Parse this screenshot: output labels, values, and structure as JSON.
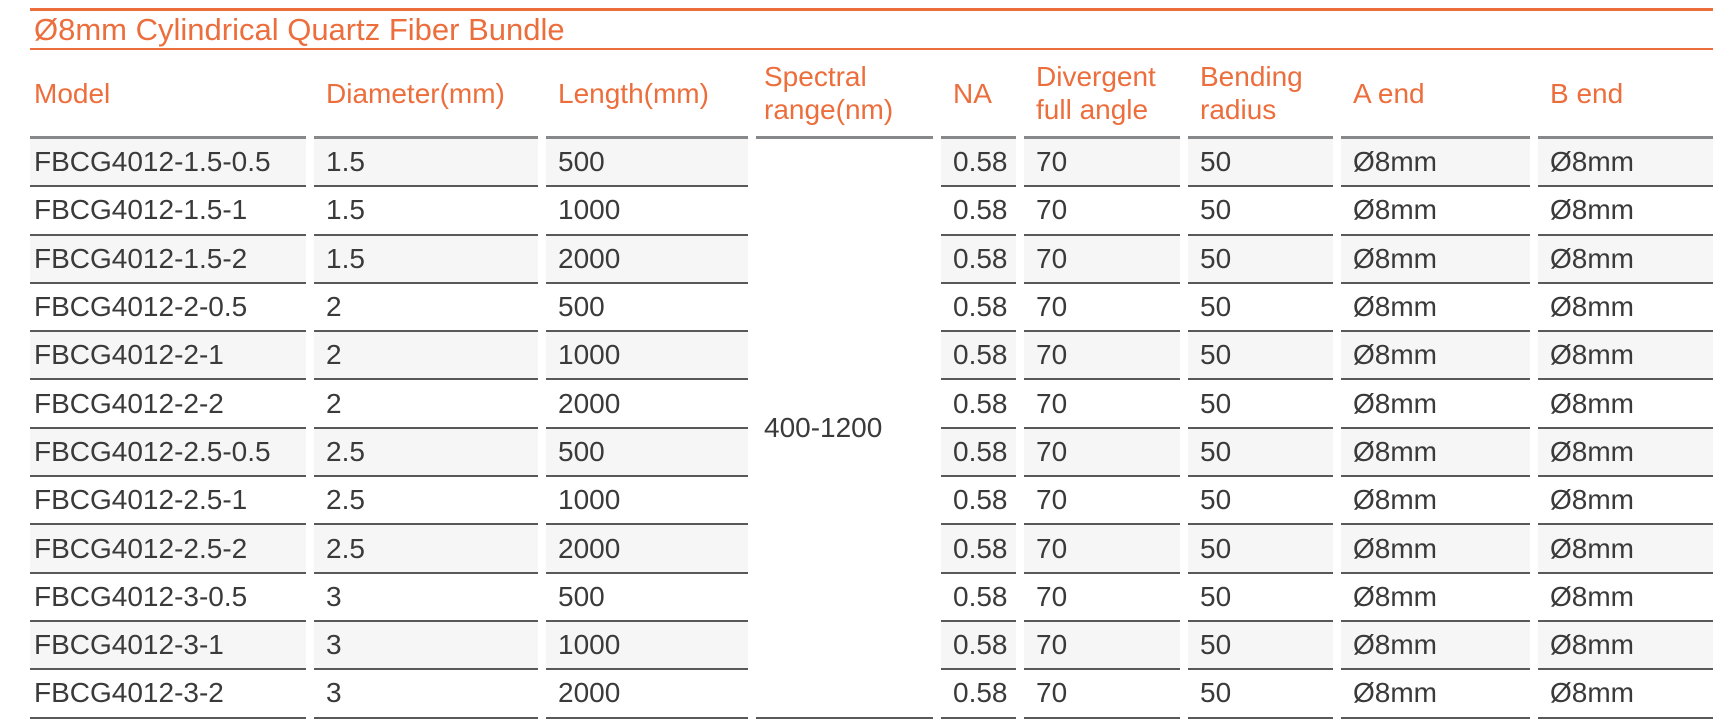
{
  "page": {
    "title": "Ø8mm Cylindrical Quartz Fiber Bundle"
  },
  "colors": {
    "accent_orange": "#ec6e3c",
    "row_stripe": "#f6f6f7",
    "row_divider": "#58595b",
    "header_divider": "#87888a",
    "body_text": "#3a3a3a"
  },
  "table": {
    "headers": [
      "Model",
      "Diameter(mm)",
      "Length(mm)",
      "Spectral range(nm)",
      "NA",
      "Divergent full angle",
      "Bending radius",
      "A end",
      "B end"
    ],
    "merged": {
      "column": "Spectral range(nm)",
      "value": "400-1200"
    },
    "rows": [
      {
        "model": "FBCG4012-1.5-0.5",
        "diameter": "1.5",
        "length": "500",
        "na": "0.58",
        "divergent_full_angle": "70",
        "bending_radius": "50",
        "a_end": "Ø8mm",
        "b_end": "Ø8mm"
      },
      {
        "model": "FBCG4012-1.5-1",
        "diameter": "1.5",
        "length": "1000",
        "na": "0.58",
        "divergent_full_angle": "70",
        "bending_radius": "50",
        "a_end": "Ø8mm",
        "b_end": "Ø8mm"
      },
      {
        "model": "FBCG4012-1.5-2",
        "diameter": "1.5",
        "length": "2000",
        "na": "0.58",
        "divergent_full_angle": "70",
        "bending_radius": "50",
        "a_end": "Ø8mm",
        "b_end": "Ø8mm"
      },
      {
        "model": "FBCG4012-2-0.5",
        "diameter": "2",
        "length": "500",
        "na": "0.58",
        "divergent_full_angle": "70",
        "bending_radius": "50",
        "a_end": "Ø8mm",
        "b_end": "Ø8mm"
      },
      {
        "model": "FBCG4012-2-1",
        "diameter": "2",
        "length": "1000",
        "na": "0.58",
        "divergent_full_angle": "70",
        "bending_radius": "50",
        "a_end": "Ø8mm",
        "b_end": "Ø8mm"
      },
      {
        "model": "FBCG4012-2-2",
        "diameter": "2",
        "length": "2000",
        "na": "0.58",
        "divergent_full_angle": "70",
        "bending_radius": "50",
        "a_end": "Ø8mm",
        "b_end": "Ø8mm"
      },
      {
        "model": "FBCG4012-2.5-0.5",
        "diameter": "2.5",
        "length": "500",
        "na": "0.58",
        "divergent_full_angle": "70",
        "bending_radius": "50",
        "a_end": "Ø8mm",
        "b_end": "Ø8mm"
      },
      {
        "model": "FBCG4012-2.5-1",
        "diameter": "2.5",
        "length": "1000",
        "na": "0.58",
        "divergent_full_angle": "70",
        "bending_radius": "50",
        "a_end": "Ø8mm",
        "b_end": "Ø8mm"
      },
      {
        "model": "FBCG4012-2.5-2",
        "diameter": "2.5",
        "length": "2000",
        "na": "0.58",
        "divergent_full_angle": "70",
        "bending_radius": "50",
        "a_end": "Ø8mm",
        "b_end": "Ø8mm"
      },
      {
        "model": "FBCG4012-3-0.5",
        "diameter": "3",
        "length": "500",
        "na": "0.58",
        "divergent_full_angle": "70",
        "bending_radius": "50",
        "a_end": "Ø8mm",
        "b_end": "Ø8mm"
      },
      {
        "model": "FBCG4012-3-1",
        "diameter": "3",
        "length": "1000",
        "na": "0.58",
        "divergent_full_angle": "70",
        "bending_radius": "50",
        "a_end": "Ø8mm",
        "b_end": "Ø8mm"
      },
      {
        "model": "FBCG4012-3-2",
        "diameter": "3",
        "length": "2000",
        "na": "0.58",
        "divergent_full_angle": "70",
        "bending_radius": "50",
        "a_end": "Ø8mm",
        "b_end": "Ø8mm"
      }
    ]
  }
}
